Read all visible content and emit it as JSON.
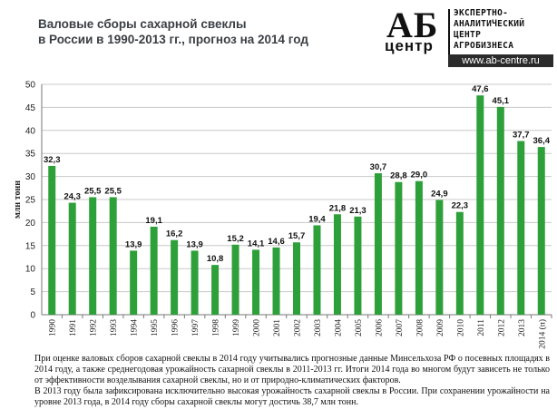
{
  "header": {
    "title_line1": "Валовые сборы сахарной свеклы",
    "title_line2": "в России в 1990-2013 гг., прогноз на 2014 год"
  },
  "logo": {
    "mark": "АБ",
    "center": "центр",
    "line1": "ЭКСПЕРТНО-",
    "line2": "АНАЛИТИЧЕСКИЙ",
    "line3": "ЦЕНТР",
    "line4": "АГРОБИЗНЕСА",
    "url": "www.ab-centre.ru"
  },
  "chart_data": {
    "type": "bar",
    "categories": [
      "1990",
      "1991",
      "1992",
      "1993",
      "1994",
      "1995",
      "1996",
      "1997",
      "1998",
      "1999",
      "2000",
      "2001",
      "2002",
      "2003",
      "2004",
      "2005",
      "2006",
      "2007",
      "2008",
      "2009",
      "2010",
      "2011",
      "2012",
      "2013",
      "2014 (п)"
    ],
    "values": [
      32.3,
      24.3,
      25.5,
      25.5,
      13.9,
      19.1,
      16.2,
      13.9,
      10.8,
      15.2,
      14.1,
      14.6,
      15.7,
      19.4,
      21.8,
      21.3,
      30.7,
      28.8,
      29.0,
      24.9,
      22.3,
      47.6,
      45.1,
      37.7,
      36.4
    ],
    "labels": [
      "32,3",
      "24,3",
      "25,5",
      "25,5",
      "13,9",
      "19,1",
      "16,2",
      "13,9",
      "10,8",
      "15,2",
      "14,1",
      "14,6",
      "15,7",
      "19,4",
      "21,8",
      "21,3",
      "30,7",
      "28,8",
      "29,0",
      "24,9",
      "22,3",
      "47,6",
      "45,1",
      "37,7",
      "36,4"
    ],
    "ylabel": "млн тонн",
    "xlabel": "",
    "ylim": [
      0,
      50
    ],
    "yticks": [
      0,
      5,
      10,
      15,
      20,
      25,
      30,
      35,
      40,
      45,
      50
    ],
    "grid": true,
    "color": "#2ea03a"
  },
  "caption": {
    "p1": "При оценке валовых сборов сахарной свеклы в 2014 году учитывались прогнозные данные Минсельхоза РФ о посевных площадях в 2014 году, а также среднегодовая урожайность сахарной свеклы в 2011-2013 гг. Итоги 2014 года во многом будут зависеть не только от эффективности возделывания сахарной свеклы, но и от природно-климатических факторов.",
    "p2": "В 2013 году была зафиксирована исключительно высокая урожайность сахарной свеклы в России. При сохранении урожайности на уровне 2013 года, в 2014 году сборы сахарной свеклы могут достичь 38,7 млн тонн."
  }
}
